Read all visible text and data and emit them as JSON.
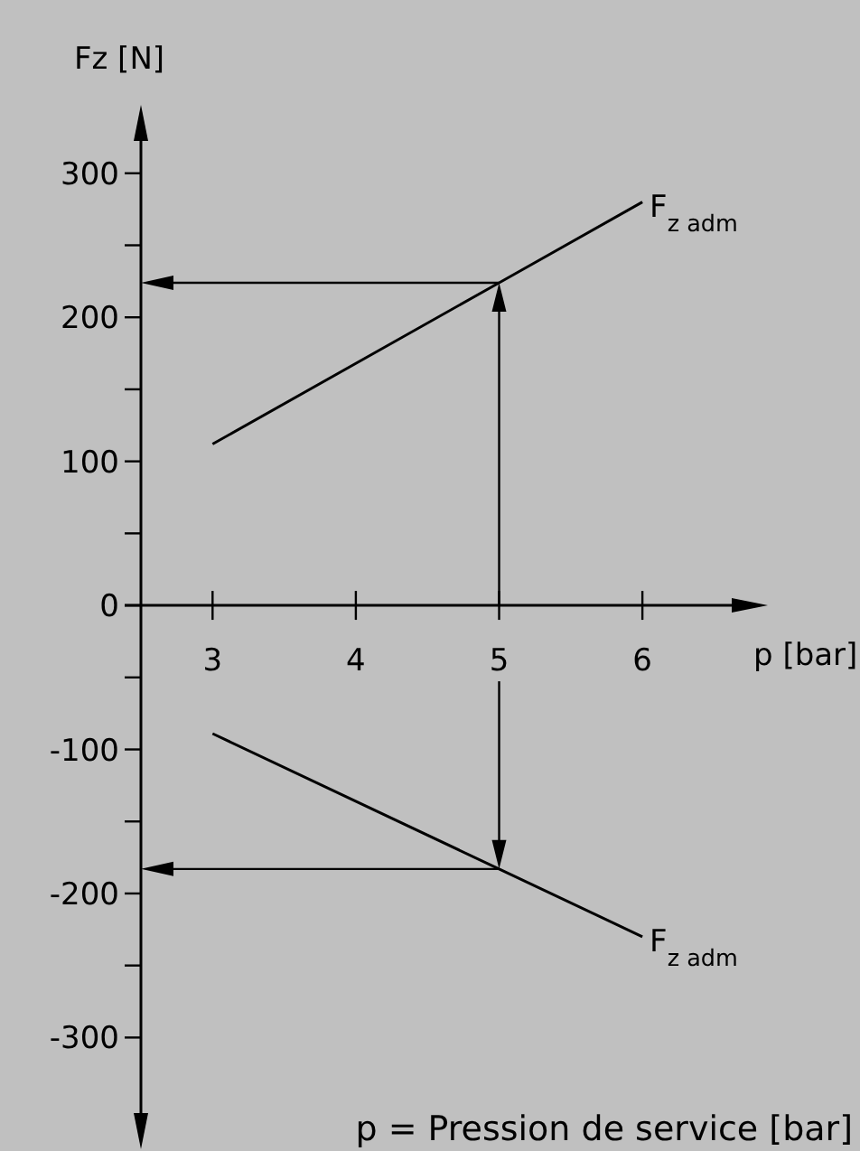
{
  "chart_data": {
    "type": "line",
    "xlabel": "p [bar]",
    "ylabel": "Fz [N]",
    "xlim": [
      2.5,
      6.8
    ],
    "ylim": [
      -370,
      340
    ],
    "xticks": [
      3,
      4,
      5,
      6
    ],
    "yticks": [
      {
        "value": -300,
        "label": "-300"
      },
      {
        "value": -250,
        "label": null
      },
      {
        "value": -200,
        "label": "-200"
      },
      {
        "value": -150,
        "label": null
      },
      {
        "value": -100,
        "label": "-100"
      },
      {
        "value": -50,
        "label": null
      },
      0,
      {
        "value": 50,
        "label": null
      },
      100,
      {
        "value": 150,
        "label": null
      },
      200,
      {
        "value": 250,
        "label": null
      },
      300
    ],
    "series": [
      {
        "name": "F$_{z adm}$",
        "color": "#000000",
        "x": [
          3,
          5,
          6
        ],
        "values": [
          112,
          224,
          280
        ]
      },
      {
        "name": "F$_{z adm}$",
        "color": "#000000",
        "x": [
          3,
          5,
          6
        ],
        "values": [
          -89,
          -183,
          -230
        ]
      }
    ],
    "annotations": [
      "p = Pression de service [bar]"
    ],
    "grid": false,
    "marker": "none",
    "line_style": "solid"
  }
}
